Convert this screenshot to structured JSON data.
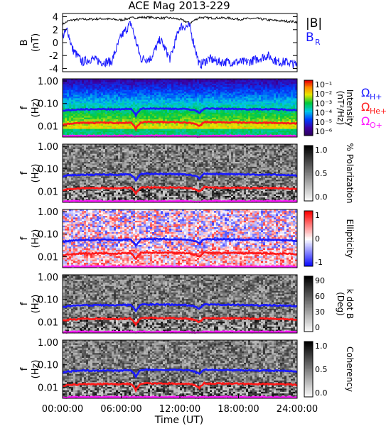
{
  "title": "ACE Mag 2013-229",
  "time_axis": {
    "label": "Time (UT)",
    "ticks": [
      "00:00:00",
      "06:00:00",
      "12:00:00",
      "18:00:00",
      "24:00:00"
    ],
    "range_hours": [
      0,
      24
    ]
  },
  "colors": {
    "B_mag": "#000000",
    "B_R": "#1a1aff",
    "omega_H": "#1a1aff",
    "omega_He": "#ff1a1a",
    "omega_O": "#ff1aff"
  },
  "gyro_labels": [
    {
      "text": "Ω",
      "sub": "H+",
      "color": "#1a1aff"
    },
    {
      "text": "Ω",
      "sub": "He+",
      "color": "#ff1a1a"
    },
    {
      "text": "Ω",
      "sub": "O+",
      "color": "#ff1aff"
    }
  ],
  "chart_data": [
    {
      "type": "line",
      "title": "ACE Mag 2013-229",
      "ylabel": "B",
      "yunit": "(nT)",
      "ylim": [
        -4.5,
        4.5
      ],
      "yticks": [
        "4",
        "2",
        "0",
        "-2",
        "-4"
      ],
      "legend": [
        "|B|",
        "B",
        "R"
      ],
      "series": [
        {
          "name": "|B|",
          "x": [
            0,
            0.5,
            1,
            2,
            3,
            4,
            5,
            6,
            7,
            8,
            9,
            10,
            11,
            12,
            13,
            14,
            15,
            16,
            17,
            18,
            19,
            20,
            21,
            22,
            23,
            24
          ],
          "values": [
            2.8,
            3.3,
            3.5,
            3.6,
            3.6,
            3.7,
            3.6,
            3.5,
            3.8,
            3.9,
            3.9,
            3.8,
            3.8,
            3.6,
            3.0,
            3.9,
            3.8,
            3.8,
            3.8,
            3.6,
            3.7,
            3.7,
            3.5,
            3.4,
            3.3,
            3.2
          ]
        },
        {
          "name": "B_R",
          "x": [
            0,
            0.5,
            1,
            2,
            3,
            4,
            5,
            6,
            7,
            8,
            9,
            10,
            11,
            12,
            13,
            14,
            15,
            16,
            17,
            18,
            19,
            20,
            21,
            22,
            23,
            24
          ],
          "values": [
            1.0,
            2.0,
            -1.0,
            -3.0,
            -2.5,
            -3.0,
            -3.0,
            1.0,
            3.0,
            -2.5,
            -2.5,
            0.5,
            -2.5,
            2.5,
            2.5,
            -3.5,
            -2.5,
            -3.0,
            -3.0,
            -3.0,
            -3.0,
            -2.5,
            -2.0,
            -3.0,
            -3.0,
            -3.5
          ]
        }
      ]
    },
    {
      "type": "heatmap",
      "ylabel": "f",
      "yunit": "(Hz)",
      "ylim": [
        0.003,
        1.0
      ],
      "yscale": "log",
      "yticks": [
        "1.00",
        "0.10",
        "0.01"
      ],
      "colorbar": {
        "label": "Intensity",
        "unit": "(nT²/Hz)",
        "ticks": [
          "10⁻¹",
          "10⁻²",
          "10⁻³",
          "10⁻⁴",
          "10⁻⁵",
          "10⁻⁶"
        ],
        "palette": "rainbow"
      }
    },
    {
      "type": "heatmap",
      "ylabel": "f",
      "yunit": "(Hz)",
      "yscale": "log",
      "yticks": [
        "1.00",
        "0.10",
        "0.01"
      ],
      "colorbar": {
        "label": "% Polarization",
        "unit": "",
        "ticks": [
          "1.0",
          "0.5",
          "0.0"
        ],
        "palette": "gray"
      }
    },
    {
      "type": "heatmap",
      "ylabel": "f",
      "yunit": "(Hz)",
      "yscale": "log",
      "yticks": [
        "1.00",
        "0.10",
        "0.01"
      ],
      "colorbar": {
        "label": "Ellipticity",
        "unit": "",
        "ticks": [
          "1",
          "0",
          "-1"
        ],
        "palette": "bluered"
      }
    },
    {
      "type": "heatmap",
      "ylabel": "f",
      "yunit": "(Hz)",
      "yscale": "log",
      "yticks": [
        "1.00",
        "0.10",
        "0.01"
      ],
      "colorbar": {
        "label": "k dot B",
        "unit": "(Deg)",
        "ticks": [
          "90",
          "60",
          "30",
          "0"
        ],
        "palette": "gray"
      }
    },
    {
      "type": "heatmap",
      "ylabel": "f",
      "yunit": "(Hz)",
      "yscale": "log",
      "yticks": [
        "1.00",
        "0.10",
        "0.01"
      ],
      "colorbar": {
        "label": "Coherency",
        "unit": "",
        "ticks": [
          "1.0",
          "0.5",
          "0.0"
        ],
        "palette": "gray"
      }
    }
  ],
  "gyrofrequency_lines": {
    "x": [
      0,
      0.5,
      1,
      1.5,
      2,
      2.5,
      3,
      3.5,
      4,
      4.5,
      5,
      5.5,
      6,
      6.5,
      7,
      7.5,
      8,
      8.5,
      9,
      9.5,
      10,
      10.5,
      11,
      11.5,
      12,
      12.5,
      13,
      13.5,
      14,
      14.5,
      15,
      15.5,
      16,
      16.5,
      17,
      17.5,
      18,
      18.5,
      19,
      19.5,
      20,
      20.5,
      21,
      21.5,
      22,
      22.5,
      23,
      23.5,
      24
    ],
    "H+": [
      0.045,
      0.05,
      0.052,
      0.053,
      0.055,
      0.055,
      0.054,
      0.055,
      0.056,
      0.056,
      0.055,
      0.054,
      0.055,
      0.057,
      0.056,
      0.03,
      0.058,
      0.06,
      0.059,
      0.06,
      0.059,
      0.058,
      0.059,
      0.058,
      0.057,
      0.056,
      0.055,
      0.05,
      0.038,
      0.06,
      0.059,
      0.058,
      0.058,
      0.058,
      0.058,
      0.057,
      0.057,
      0.056,
      0.056,
      0.056,
      0.055,
      0.056,
      0.055,
      0.055,
      0.054,
      0.054,
      0.053,
      0.052,
      0.05
    ],
    "He+": [
      0.011,
      0.0125,
      0.013,
      0.013,
      0.0138,
      0.0138,
      0.0135,
      0.0138,
      0.014,
      0.014,
      0.0138,
      0.0135,
      0.0138,
      0.0142,
      0.014,
      0.0075,
      0.0145,
      0.015,
      0.0148,
      0.015,
      0.0148,
      0.0145,
      0.0148,
      0.0145,
      0.0143,
      0.014,
      0.0138,
      0.0125,
      0.0095,
      0.015,
      0.0148,
      0.0145,
      0.0145,
      0.0145,
      0.0145,
      0.0143,
      0.0143,
      0.014,
      0.014,
      0.014,
      0.0138,
      0.014,
      0.0138,
      0.0138,
      0.0135,
      0.0135,
      0.0133,
      0.013,
      0.0125
    ],
    "O+": [
      0.0035,
      0.0035,
      0.0036,
      0.0036,
      0.0036,
      0.0036,
      0.0036,
      0.0036,
      0.0036,
      0.0036,
      0.0036,
      0.0036,
      0.0036,
      0.0036,
      0.0036,
      0.0035,
      0.0036,
      0.0036,
      0.0036,
      0.0036,
      0.0036,
      0.0036,
      0.0036,
      0.0036,
      0.0036,
      0.0036,
      0.0036,
      0.0035,
      0.0034,
      0.0036,
      0.0036,
      0.0036,
      0.0036,
      0.0036,
      0.0036,
      0.0036,
      0.0036,
      0.0036,
      0.0036,
      0.0036,
      0.0036,
      0.0036,
      0.0036,
      0.0036,
      0.0036,
      0.0036,
      0.0036,
      0.0036,
      0.0035
    ]
  }
}
